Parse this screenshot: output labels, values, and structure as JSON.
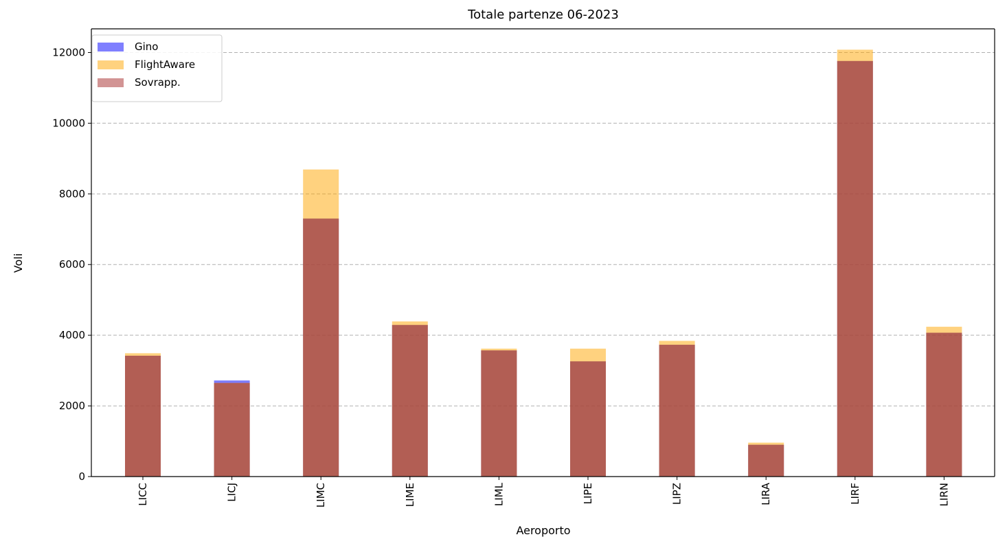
{
  "chart_data": {
    "type": "bar",
    "title": "Totale partenze 06-2023",
    "xlabel": "Aeroporto",
    "ylabel": "Voli",
    "categories": [
      "LICC",
      "LICJ",
      "LIMC",
      "LIME",
      "LIML",
      "LIPE",
      "LIPZ",
      "LIRA",
      "LIRF",
      "LIRN"
    ],
    "series": [
      {
        "name": "Gino",
        "color": "#0000ff",
        "opacity": 0.5,
        "values": [
          3420,
          2720,
          7300,
          4290,
          3570,
          3260,
          3730,
          900,
          11760,
          4070
        ]
      },
      {
        "name": "FlightAware",
        "color": "#ffa500",
        "opacity": 0.5,
        "values": [
          3490,
          2650,
          8690,
          4390,
          3620,
          3620,
          3840,
          960,
          12080,
          4240
        ]
      },
      {
        "name": "Sovrapp.",
        "color": "#a52a2a",
        "opacity": 0.5,
        "values": [
          3420,
          2650,
          7300,
          4290,
          3570,
          3260,
          3730,
          900,
          11760,
          4070
        ]
      }
    ],
    "yticks": [
      0,
      2000,
      4000,
      6000,
      8000,
      10000,
      12000
    ],
    "ylim": [
      0,
      12670
    ],
    "grid": "y-dashed",
    "legend_position": "top-left"
  }
}
